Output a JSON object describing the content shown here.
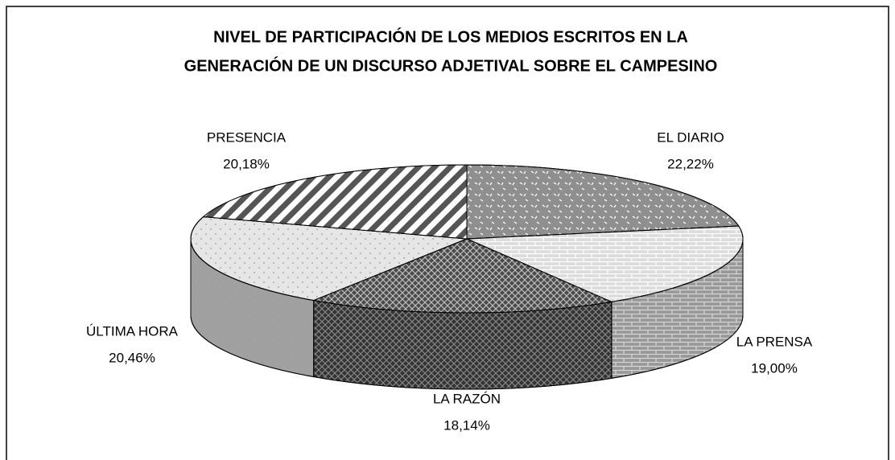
{
  "chart_data": {
    "type": "pie3d",
    "title": [
      "NIVEL DE PARTICIPACIÓN DE LOS MEDIOS ESCRITOS EN LA",
      "GENERACIÓN DE UN DISCURSO ADJETIVAL SOBRE EL CAMPESINO"
    ],
    "categories": [
      "EL DIARIO",
      "LA PRENSA",
      "LA RAZÓN",
      "ÚLTIMA HORA",
      "PRESENCIA"
    ],
    "values": [
      22.22,
      19.0,
      18.14,
      20.46,
      20.18
    ],
    "value_labels": [
      "22,22%",
      "19,00%",
      "18,14%",
      "20,46%",
      "20,18%"
    ],
    "colors": [
      "#8f8f8f",
      "#dcdcdc",
      "#4a4a4a",
      "#e6e6e6",
      "#555555"
    ]
  }
}
